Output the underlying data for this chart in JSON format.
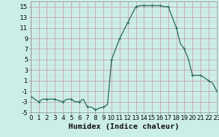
{
  "x": [
    0.0,
    0.5,
    1.0,
    1.5,
    2.0,
    2.5,
    3.0,
    3.5,
    4.0,
    4.5,
    5.0,
    5.5,
    6.0,
    6.5,
    7.0,
    7.5,
    8.0,
    8.5,
    9.0,
    9.5,
    10.0,
    10.5,
    11.0,
    11.5,
    12.0,
    12.5,
    13.0,
    13.5,
    14.0,
    14.5,
    15.0,
    15.5,
    16.0,
    16.5,
    17.0,
    17.5,
    18.0,
    18.5,
    19.0,
    19.5,
    20.0,
    20.5,
    21.0,
    21.5,
    22.0,
    22.5,
    23.0
  ],
  "y": [
    -2.0,
    -2.5,
    -3.0,
    -2.5,
    -2.5,
    -2.5,
    -2.5,
    -2.8,
    -3.0,
    -2.5,
    -2.5,
    -3.0,
    -3.0,
    -2.5,
    -4.0,
    -4.0,
    -4.5,
    -4.2,
    -4.0,
    -3.5,
    5.0,
    7.0,
    9.0,
    10.5,
    12.0,
    13.5,
    15.0,
    15.2,
    15.2,
    15.2,
    15.2,
    15.2,
    15.2,
    15.0,
    15.0,
    13.0,
    11.0,
    8.0,
    7.0,
    5.0,
    2.0,
    2.0,
    2.0,
    1.5,
    1.0,
    0.5,
    -1.0
  ],
  "line_color": "#2d6b5e",
  "marker": "+",
  "marker_size": 3,
  "marker_every": 2,
  "bg_color": "#cceee8",
  "grid_major_color": "#c4a0a0",
  "grid_minor_color": "#d8c8c8",
  "xlabel": "Humidex (Indice chaleur)",
  "ylim": [
    -5,
    16
  ],
  "xlim": [
    0,
    23
  ],
  "yticks": [
    -5,
    -3,
    -1,
    1,
    3,
    5,
    7,
    9,
    11,
    13,
    15
  ],
  "xticks": [
    0,
    1,
    2,
    3,
    4,
    5,
    6,
    7,
    8,
    9,
    10,
    11,
    12,
    13,
    14,
    15,
    16,
    17,
    18,
    19,
    20,
    21,
    22,
    23
  ],
  "xlabel_fontsize": 8,
  "tick_fontsize": 6.5,
  "line_width": 1.0
}
